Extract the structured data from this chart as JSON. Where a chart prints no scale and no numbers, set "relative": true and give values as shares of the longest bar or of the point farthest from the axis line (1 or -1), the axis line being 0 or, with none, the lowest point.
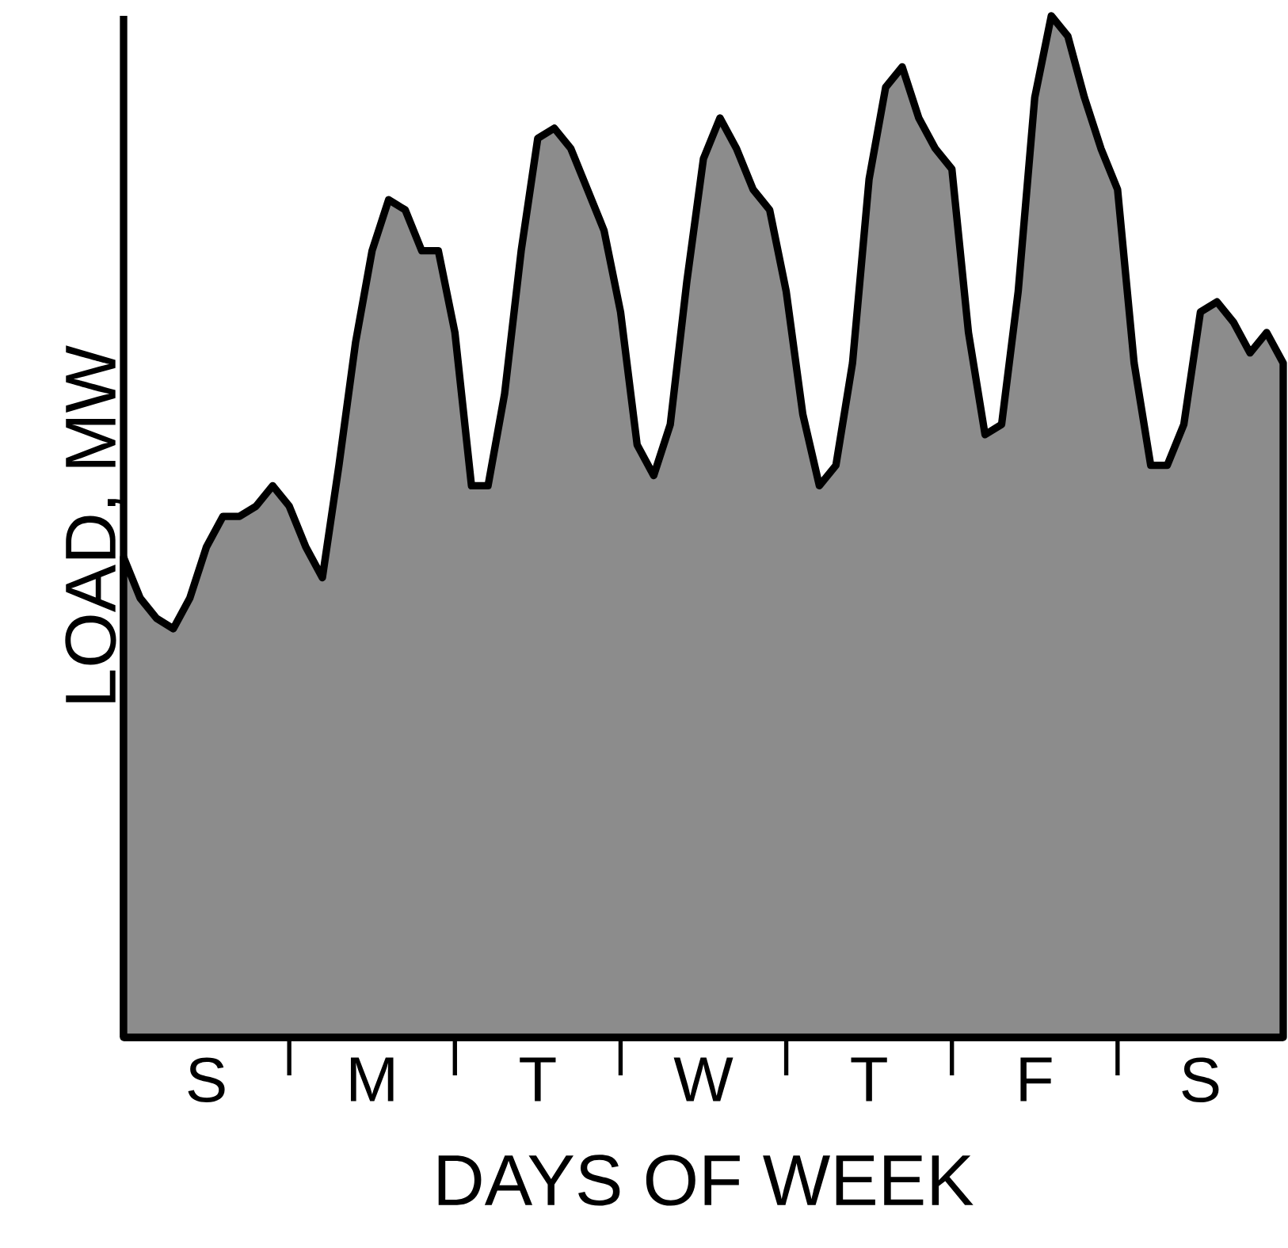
{
  "chart_data": {
    "type": "area",
    "relative": true,
    "xlabel": "DAYS OF WEEK",
    "ylabel": "LOAD, MW",
    "categories": [
      null,
      null,
      null,
      null,
      null,
      "S",
      null,
      null,
      null,
      null,
      null,
      null,
      null,
      null,
      null,
      "M",
      null,
      null,
      null,
      null,
      null,
      null,
      null,
      null,
      null,
      "T",
      null,
      null,
      null,
      null,
      null,
      null,
      null,
      null,
      null,
      "W",
      null,
      null,
      null,
      null,
      null,
      null,
      null,
      null,
      null,
      "T",
      null,
      null,
      null,
      null,
      null,
      null,
      null,
      null,
      null,
      "F",
      null,
      null,
      null,
      null,
      null,
      null,
      null,
      null,
      null,
      "S",
      null,
      null,
      null,
      null,
      null
    ],
    "series": [
      {
        "color": "#000000",
        "values": [
          0.47,
          0.43,
          0.41,
          0.4,
          0.43,
          0.48,
          0.51,
          0.51,
          0.52,
          0.54,
          0.52,
          0.48,
          0.45,
          0.56,
          0.68,
          0.77,
          0.82,
          0.81,
          0.77,
          0.77,
          0.69,
          0.54,
          0.54,
          0.63,
          0.77,
          0.88,
          0.89,
          0.87,
          0.83,
          0.79,
          0.71,
          0.58,
          0.55,
          0.6,
          0.74,
          0.86,
          0.9,
          0.87,
          0.83,
          0.81,
          0.73,
          0.61,
          0.54,
          0.56,
          0.66,
          0.84,
          0.93,
          0.95,
          0.9,
          0.87,
          0.85,
          0.69,
          0.59,
          0.6,
          0.73,
          0.92,
          1.0,
          0.98,
          0.92,
          0.87,
          0.83,
          0.66,
          0.56,
          0.56,
          0.6,
          0.71,
          0.72,
          0.7,
          0.67,
          0.69,
          0.66
        ]
      }
    ]
  }
}
